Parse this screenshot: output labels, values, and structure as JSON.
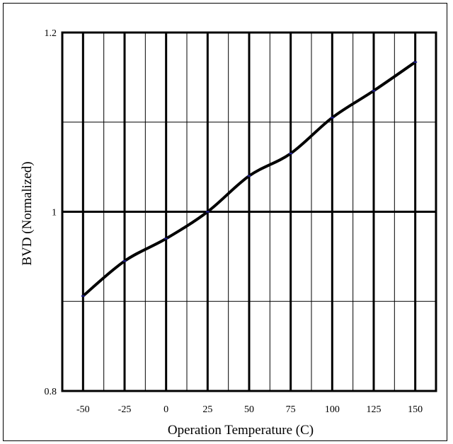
{
  "chart_data": {
    "type": "line",
    "title": "",
    "xlabel": "Operation Temperature (C)",
    "ylabel": "BVD (Normalized)",
    "xlim": [
      -62.5,
      162.5
    ],
    "ylim": [
      0.8,
      1.2
    ],
    "x_ticks": [
      -50,
      -25,
      0,
      25,
      50,
      75,
      100,
      125,
      150
    ],
    "x_tick_labels": [
      "-50",
      "-25",
      "0",
      "25",
      "50",
      "75",
      "100",
      "125",
      "150"
    ],
    "y_ticks": [
      0.8,
      1.0,
      1.2
    ],
    "y_tick_labels": [
      "0.8",
      "1",
      "1.2"
    ],
    "grid": true,
    "line_color": "#000000",
    "marker_color": "#1f1f8f",
    "series": [
      {
        "x": [
          -50,
          -25,
          0,
          25,
          50,
          75,
          100,
          125,
          150
        ],
        "y": [
          0.906,
          0.945,
          0.97,
          1.0,
          1.04,
          1.065,
          1.105,
          1.135,
          1.167
        ]
      }
    ]
  }
}
